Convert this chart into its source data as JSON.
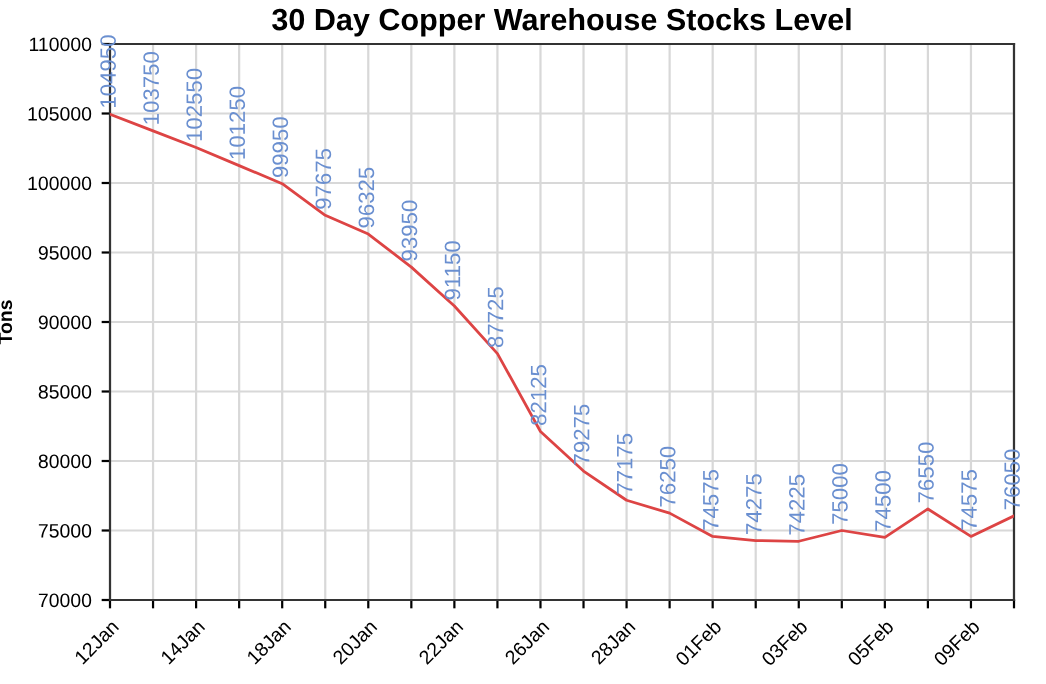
{
  "chart_data": {
    "type": "line",
    "title": "30 Day Copper Warehouse Stocks Level",
    "ylabel": "Tons",
    "categories": [
      "12Jan",
      null,
      "14Jan",
      null,
      "18Jan",
      null,
      "20Jan",
      null,
      "22Jan",
      null,
      "26Jan",
      null,
      "28Jan",
      null,
      "01Feb",
      null,
      "03Feb",
      null,
      "05Feb",
      null,
      "09Feb",
      null
    ],
    "series": [
      {
        "color": "#dd4444",
        "values": [
          104950,
          103750,
          102550,
          101250,
          99950,
          97675,
          96325,
          93950,
          91150,
          87725,
          82125,
          79275,
          77175,
          76250,
          74575,
          74275,
          74225,
          75000,
          74500,
          76550,
          74575,
          76050
        ]
      }
    ],
    "ylim": [
      70000,
      110000
    ],
    "yticks": [
      70000,
      75000,
      80000,
      85000,
      90000,
      95000,
      100000,
      105000,
      110000
    ],
    "grid": true,
    "data_labels": true,
    "marker": "none",
    "line_style": "solid",
    "legend": false
  }
}
